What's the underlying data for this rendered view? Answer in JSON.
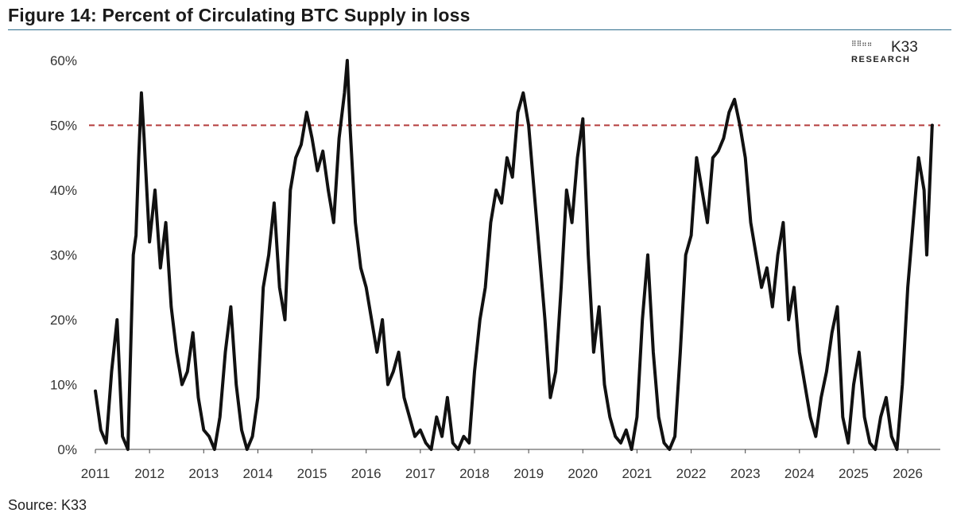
{
  "title": "Figure 14: Percent of Circulating BTC Supply in loss",
  "source": "Source: K33",
  "logo": {
    "name": "K33",
    "sub": "RESEARCH",
    "icon": "dot-grid-logo-icon"
  },
  "colors": {
    "line": "#111111",
    "reference": "#b33a3a",
    "rule": "#2e6d8c",
    "axis": "#444444"
  },
  "chart_data": {
    "type": "line",
    "title": "",
    "xlabel": "",
    "ylabel": "",
    "xlim": [
      2011.0,
      2026.6
    ],
    "ylim": [
      0,
      60
    ],
    "y_ticks": [
      "0%",
      "10%",
      "20%",
      "30%",
      "40%",
      "50%",
      "60%"
    ],
    "x_ticks": [
      "2011",
      "2012",
      "2013",
      "2014",
      "2015",
      "2016",
      "2017",
      "2018",
      "2019",
      "2020",
      "2021",
      "2022",
      "2023",
      "2024",
      "2025",
      "2026"
    ],
    "grid": false,
    "legend": "none",
    "reference_line": {
      "y": 50,
      "style": "dashed"
    },
    "series": [
      {
        "x": [
          2011.0,
          2011.1,
          2011.2,
          2011.3,
          2011.4,
          2011.5,
          2011.6,
          2011.7,
          2011.75,
          2011.8,
          2011.85,
          2011.9,
          2012.0,
          2012.1,
          2012.2,
          2012.3,
          2012.4,
          2012.5,
          2012.6,
          2012.7,
          2012.8,
          2012.9,
          2013.0,
          2013.1,
          2013.2,
          2013.3,
          2013.4,
          2013.5,
          2013.6,
          2013.7,
          2013.8,
          2013.9,
          2014.0,
          2014.1,
          2014.2,
          2014.3,
          2014.4,
          2014.5,
          2014.6,
          2014.7,
          2014.8,
          2014.9,
          2015.0,
          2015.1,
          2015.2,
          2015.3,
          2015.4,
          2015.5,
          2015.6,
          2015.65,
          2015.7,
          2015.8,
          2015.9,
          2016.0,
          2016.1,
          2016.2,
          2016.3,
          2016.4,
          2016.5,
          2016.6,
          2016.7,
          2016.8,
          2016.9,
          2017.0,
          2017.1,
          2017.2,
          2017.3,
          2017.4,
          2017.5,
          2017.6,
          2017.7,
          2017.8,
          2017.9,
          2018.0,
          2018.1,
          2018.2,
          2018.3,
          2018.4,
          2018.5,
          2018.6,
          2018.7,
          2018.8,
          2018.9,
          2019.0,
          2019.1,
          2019.2,
          2019.3,
          2019.4,
          2019.5,
          2019.6,
          2019.7,
          2019.8,
          2019.9,
          2020.0,
          2020.1,
          2020.2,
          2020.3,
          2020.4,
          2020.5,
          2020.6,
          2020.7,
          2020.8,
          2020.9,
          2021.0,
          2021.1,
          2021.2,
          2021.3,
          2021.4,
          2021.5,
          2021.6,
          2021.7,
          2021.8,
          2021.9,
          2022.0,
          2022.1,
          2022.2,
          2022.3,
          2022.4,
          2022.5,
          2022.6,
          2022.7,
          2022.8,
          2022.9,
          2023.0,
          2023.1,
          2023.2,
          2023.3,
          2023.4,
          2023.5,
          2023.6,
          2023.7,
          2023.8,
          2023.9,
          2024.0,
          2024.1,
          2024.2,
          2024.3,
          2024.4,
          2024.5,
          2024.6,
          2024.7,
          2024.8,
          2024.9,
          2025.0,
          2025.1,
          2025.2,
          2025.3,
          2025.4,
          2025.5,
          2025.6,
          2025.7,
          2025.8,
          2025.9,
          2026.0,
          2026.1,
          2026.2,
          2026.3,
          2026.35,
          2026.4,
          2026.45
        ],
        "values": [
          9,
          3,
          1,
          12,
          20,
          2,
          0,
          30,
          33,
          45,
          55,
          48,
          32,
          40,
          28,
          35,
          22,
          15,
          10,
          12,
          18,
          8,
          3,
          2,
          0,
          5,
          15,
          22,
          10,
          3,
          0,
          2,
          8,
          25,
          30,
          38,
          25,
          20,
          40,
          45,
          47,
          52,
          48,
          43,
          46,
          40,
          35,
          48,
          55,
          60,
          50,
          35,
          28,
          25,
          20,
          15,
          20,
          10,
          12,
          15,
          8,
          5,
          2,
          3,
          1,
          0,
          5,
          2,
          8,
          1,
          0,
          2,
          1,
          12,
          20,
          25,
          35,
          40,
          38,
          45,
          42,
          52,
          55,
          50,
          40,
          30,
          20,
          8,
          12,
          25,
          40,
          35,
          45,
          51,
          30,
          15,
          22,
          10,
          5,
          2,
          1,
          3,
          0,
          5,
          20,
          30,
          15,
          5,
          1,
          0,
          2,
          15,
          30,
          33,
          45,
          40,
          35,
          45,
          46,
          48,
          52,
          54,
          50,
          45,
          35,
          30,
          25,
          28,
          22,
          30,
          35,
          20,
          25,
          15,
          10,
          5,
          2,
          8,
          12,
          18,
          22,
          5,
          1,
          10,
          15,
          5,
          1,
          0,
          5,
          8,
          2,
          0,
          10,
          25,
          35,
          45,
          40,
          30,
          40,
          50
        ]
      }
    ]
  }
}
